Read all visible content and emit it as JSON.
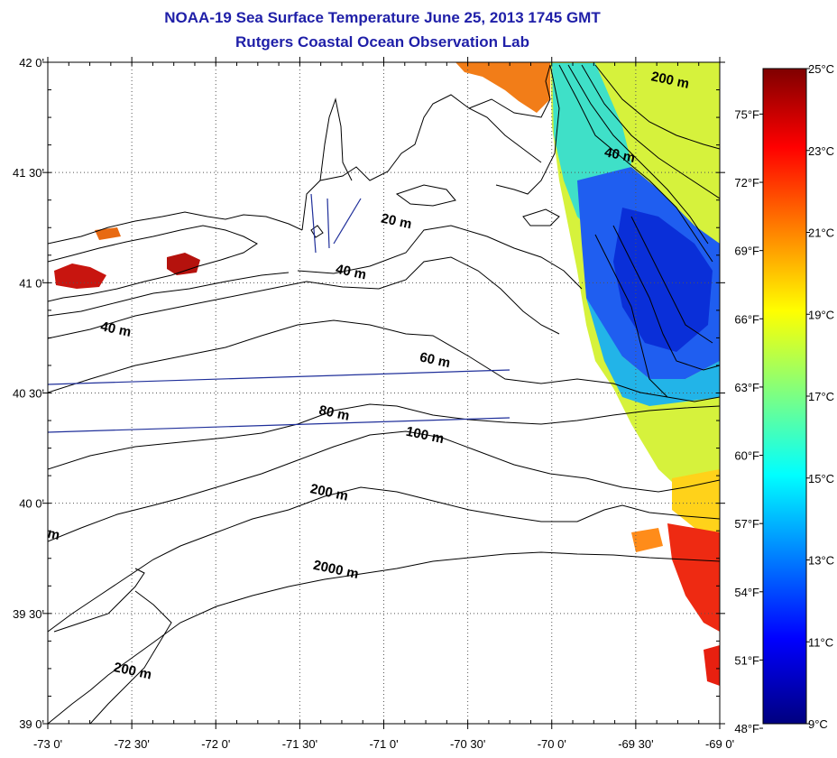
{
  "header": {
    "title": "NOAA-19 Sea Surface Temperature June 25, 2013 1745 GMT",
    "subtitle": "Rutgers Coastal Ocean Observation Lab"
  },
  "map": {
    "lat_range": [
      39.0,
      42.0
    ],
    "lon_range": [
      -73.0,
      -69.0
    ],
    "lat_ticks": [
      {
        "value": 42.0,
        "label": "42 0'"
      },
      {
        "value": 41.5,
        "label": "41 30'"
      },
      {
        "value": 41.0,
        "label": "41 0'"
      },
      {
        "value": 40.5,
        "label": "40 30'"
      },
      {
        "value": 40.0,
        "label": "40 0'"
      },
      {
        "value": 39.5,
        "label": "39 30'"
      },
      {
        "value": 39.0,
        "label": "39 0'"
      }
    ],
    "lon_ticks": [
      {
        "value": -73.0,
        "label": "-73 0'"
      },
      {
        "value": -72.5,
        "label": "-72 30'"
      },
      {
        "value": -72.0,
        "label": "-72 0'"
      },
      {
        "value": -71.5,
        "label": "-71 30'"
      },
      {
        "value": -71.0,
        "label": "-71 0'"
      },
      {
        "value": -70.5,
        "label": "-70 30'"
      },
      {
        "value": -70.0,
        "label": "-70 0'"
      },
      {
        "value": -69.5,
        "label": "-69 30'"
      },
      {
        "value": -69.0,
        "label": "-69 0'"
      }
    ],
    "grid": true,
    "isobath_labels": [
      {
        "text": "20 m",
        "lon": -70.93,
        "lat": 41.26
      },
      {
        "text": "40 m",
        "lon": -71.2,
        "lat": 41.03
      },
      {
        "text": "40 m",
        "lon": -72.6,
        "lat": 40.77
      },
      {
        "text": "40 m",
        "lon": -69.6,
        "lat": 41.56
      },
      {
        "text": "60 m",
        "lon": -70.7,
        "lat": 40.63
      },
      {
        "text": "80 m",
        "lon": -71.3,
        "lat": 40.39
      },
      {
        "text": "100 m",
        "lon": -70.76,
        "lat": 40.29
      },
      {
        "text": "200 m",
        "lon": -71.33,
        "lat": 40.03
      },
      {
        "text": "2000 m",
        "lon": -71.29,
        "lat": 39.68
      },
      {
        "text": "200 m",
        "lon": -69.3,
        "lat": 41.9
      },
      {
        "text": "200 m",
        "lon": -72.5,
        "lat": 39.22
      },
      {
        "text": "m",
        "lon": -72.97,
        "lat": 39.84
      }
    ]
  },
  "colorbar": {
    "celsius": [
      {
        "value": 25,
        "label": "25°C"
      },
      {
        "value": 23,
        "label": "23°C"
      },
      {
        "value": 21,
        "label": "21°C"
      },
      {
        "value": 19,
        "label": "19°C"
      },
      {
        "value": 17,
        "label": "17°C"
      },
      {
        "value": 15,
        "label": "15°C"
      },
      {
        "value": 13,
        "label": "13°C"
      },
      {
        "value": 11,
        "label": "11°C"
      },
      {
        "value": 9,
        "label": "9°C"
      }
    ],
    "fahrenheit": [
      {
        "value": 75,
        "label": "75°F"
      },
      {
        "value": 72,
        "label": "72°F"
      },
      {
        "value": 69,
        "label": "69°F"
      },
      {
        "value": 66,
        "label": "66°F"
      },
      {
        "value": 63,
        "label": "63°F"
      },
      {
        "value": 60,
        "label": "60°F"
      },
      {
        "value": 57,
        "label": "57°F"
      },
      {
        "value": 54,
        "label": "54°F"
      },
      {
        "value": 51,
        "label": "51°F"
      },
      {
        "value": 48,
        "label": "48°F"
      }
    ],
    "range_c": [
      9,
      25
    ],
    "colors": [
      "#7f0000",
      "#ff0000",
      "#ffff00",
      "#00ffff",
      "#0000ff",
      "#00007f"
    ]
  }
}
